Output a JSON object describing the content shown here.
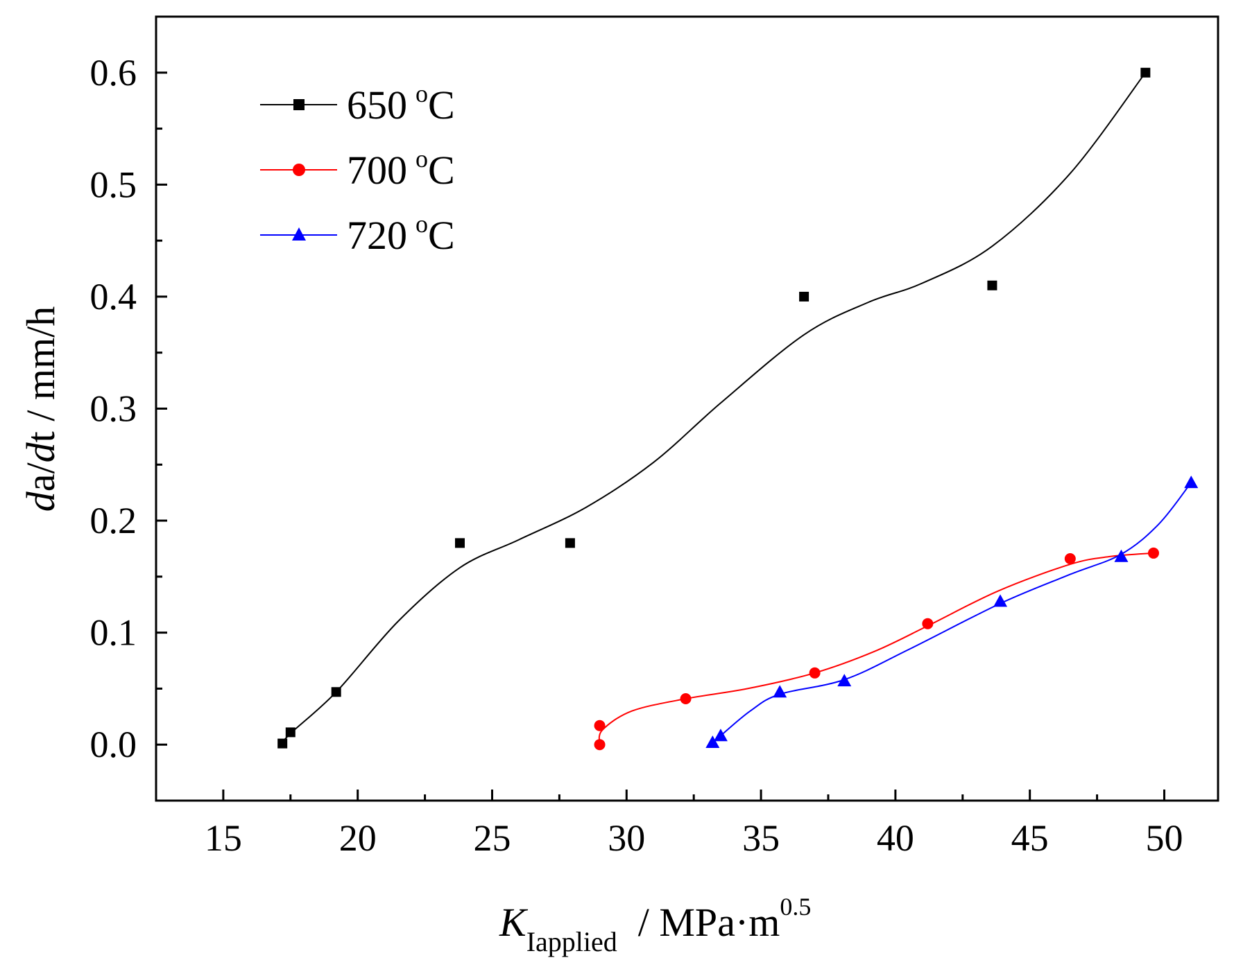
{
  "chart_data": {
    "type": "scatter",
    "title": "",
    "xlabel": {
      "main": "K",
      "sub": "Iapplied",
      "units": "/ MPa·m",
      "power": "0.5"
    },
    "ylabel": {
      "d1": "d",
      "a": "a/",
      "d2": "d",
      "rest": "t / mm/h"
    },
    "xlim": [
      12.5,
      52
    ],
    "ylim": [
      -0.05,
      0.65
    ],
    "x_ticks": [
      15,
      20,
      25,
      30,
      35,
      40,
      45,
      50
    ],
    "x_tick_labels": [
      "15",
      "20",
      "25",
      "30",
      "35",
      "40",
      "45",
      "50"
    ],
    "y_ticks": [
      0.0,
      0.1,
      0.2,
      0.3,
      0.4,
      0.5,
      0.6
    ],
    "y_tick_labels": [
      "0.0",
      "0.1",
      "0.2",
      "0.3",
      "0.4",
      "0.5",
      "0.6"
    ],
    "legend_position": "top-left",
    "series": [
      {
        "name": "650",
        "unit_sup": "o",
        "unit": "C",
        "color": "#000000",
        "marker": "square",
        "x": [
          17.2,
          17.5,
          19.2,
          23.8,
          27.9,
          36.6,
          43.6,
          49.3
        ],
        "y": [
          0.001,
          0.011,
          0.047,
          0.18,
          0.18,
          0.4,
          0.41,
          0.6
        ],
        "curve": [
          [
            17.2,
            0.001
          ],
          [
            17.5,
            0.01
          ],
          [
            19.2,
            0.047
          ],
          [
            21.5,
            0.11
          ],
          [
            23.8,
            0.158
          ],
          [
            26.0,
            0.183
          ],
          [
            28.5,
            0.212
          ],
          [
            31.0,
            0.252
          ],
          [
            33.5,
            0.305
          ],
          [
            36.6,
            0.366
          ],
          [
            39.0,
            0.395
          ],
          [
            41.0,
            0.412
          ],
          [
            43.6,
            0.445
          ],
          [
            46.5,
            0.51
          ],
          [
            49.3,
            0.6
          ]
        ]
      },
      {
        "name": "700",
        "unit_sup": "o",
        "unit": "C",
        "color": "#ff0000",
        "marker": "circle",
        "x": [
          29.0,
          29.0,
          32.2,
          37.0,
          41.2,
          46.5,
          49.6
        ],
        "y": [
          0.0,
          0.017,
          0.041,
          0.064,
          0.108,
          0.166,
          0.171
        ],
        "curve": [
          [
            29.0,
            0.0
          ],
          [
            29.1,
            0.013
          ],
          [
            30.2,
            0.03
          ],
          [
            32.2,
            0.041
          ],
          [
            34.5,
            0.05
          ],
          [
            37.0,
            0.064
          ],
          [
            39.2,
            0.083
          ],
          [
            41.2,
            0.106
          ],
          [
            43.8,
            0.137
          ],
          [
            46.5,
            0.161
          ],
          [
            48.0,
            0.168
          ],
          [
            49.6,
            0.171
          ]
        ]
      },
      {
        "name": "720",
        "unit_sup": "o",
        "unit": "C",
        "color": "#0000ff",
        "marker": "triangle",
        "x": [
          33.2,
          33.5,
          35.7,
          38.1,
          43.9,
          48.4,
          51.0
        ],
        "y": [
          0.002,
          0.008,
          0.047,
          0.057,
          0.128,
          0.168,
          0.234
        ],
        "curve": [
          [
            33.2,
            0.002
          ],
          [
            33.5,
            0.008
          ],
          [
            34.6,
            0.03
          ],
          [
            35.7,
            0.045
          ],
          [
            38.1,
            0.058
          ],
          [
            40.5,
            0.085
          ],
          [
            43.9,
            0.126
          ],
          [
            46.5,
            0.152
          ],
          [
            48.4,
            0.17
          ],
          [
            49.8,
            0.197
          ],
          [
            51.0,
            0.234
          ]
        ]
      }
    ]
  }
}
